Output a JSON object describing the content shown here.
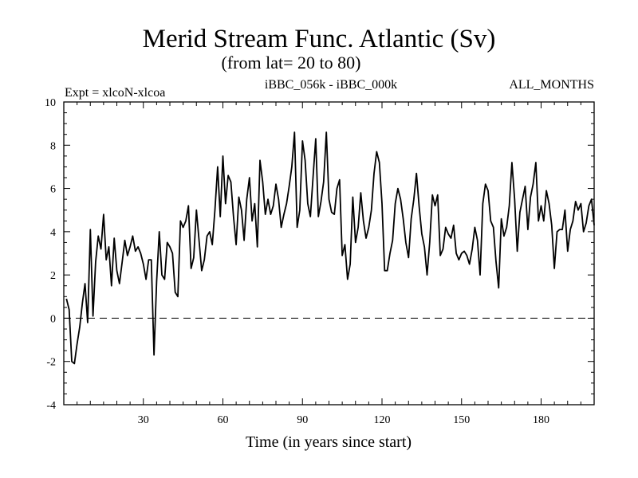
{
  "chart_data": {
    "type": "line",
    "title": "Merid Stream Func. Atlantic (Sv)",
    "subtitle": "(from lat= 20 to 80)",
    "expt_label": "Expt = xlcoN-xlcoa",
    "comparison_label": "iBBC_056k - iBBC_000k",
    "months_label": "ALL_MONTHS",
    "xlabel": "Time (in years since start)",
    "ylabel": "",
    "xlim": [
      0,
      200
    ],
    "ylim": [
      -4,
      10
    ],
    "x_ticks": [
      30,
      60,
      90,
      120,
      150,
      180
    ],
    "y_ticks": [
      -4,
      -2,
      0,
      2,
      4,
      6,
      8,
      10
    ],
    "zero_line": true,
    "series": [
      {
        "name": "iBBC_056k - iBBC_000k",
        "x_start": 1,
        "x_step": 1,
        "values": [
          0.9,
          0.4,
          -2.0,
          -2.1,
          -1.2,
          -0.4,
          0.7,
          1.6,
          -0.2,
          4.1,
          0.1,
          2.6,
          3.8,
          3.2,
          4.8,
          2.7,
          3.3,
          1.5,
          3.7,
          2.2,
          1.6,
          2.6,
          3.6,
          2.9,
          3.3,
          3.8,
          3.1,
          3.3,
          3.0,
          2.5,
          1.8,
          2.7,
          2.7,
          -1.7,
          1.7,
          4.0,
          2.0,
          1.8,
          3.5,
          3.3,
          3.0,
          1.2,
          1.0,
          4.5,
          4.2,
          4.5,
          5.2,
          2.3,
          2.8,
          5.0,
          3.6,
          2.2,
          2.7,
          3.8,
          4.0,
          3.4,
          5.0,
          7.0,
          4.7,
          7.5,
          5.3,
          6.6,
          6.3,
          4.7,
          3.4,
          5.6,
          5.0,
          3.6,
          5.5,
          6.5,
          4.5,
          5.3,
          3.3,
          7.3,
          6.3,
          4.8,
          5.5,
          4.8,
          5.2,
          6.2,
          5.5,
          4.2,
          4.8,
          5.3,
          6.1,
          7.0,
          8.6,
          4.2,
          5.0,
          8.2,
          7.3,
          5.3,
          4.7,
          6.5,
          8.3,
          4.7,
          5.4,
          6.3,
          8.6,
          5.5,
          4.9,
          4.8,
          6.0,
          6.4,
          2.9,
          3.4,
          1.8,
          2.5,
          5.6,
          3.5,
          4.2,
          5.8,
          4.5,
          3.7,
          4.2,
          5.0,
          6.7,
          7.7,
          7.2,
          5.3,
          2.2,
          2.2,
          3.0,
          3.6,
          5.3,
          6.0,
          5.5,
          4.6,
          3.5,
          2.8,
          4.6,
          5.5,
          6.7,
          5.2,
          3.9,
          3.3,
          2.0,
          3.5,
          5.7,
          5.2,
          5.7,
          2.9,
          3.2,
          4.2,
          3.9,
          3.7,
          4.3,
          3.0,
          2.7,
          3.0,
          3.1,
          2.9,
          2.5,
          3.2,
          4.2,
          3.6,
          2.0,
          5.3,
          6.2,
          5.9,
          4.5,
          4.2,
          2.6,
          1.4,
          4.6,
          3.8,
          4.2,
          5.2,
          7.2,
          5.5,
          3.1,
          4.9,
          5.5,
          6.1,
          4.1,
          5.6,
          6.2,
          7.2,
          4.5,
          5.2,
          4.5,
          5.9,
          5.3,
          4.3,
          2.3,
          4.0,
          4.1,
          4.1,
          5.0,
          3.1,
          4.1,
          4.5,
          5.4,
          5.0,
          5.3,
          4.0,
          4.4,
          5.2,
          5.5,
          4.3
        ]
      }
    ]
  }
}
